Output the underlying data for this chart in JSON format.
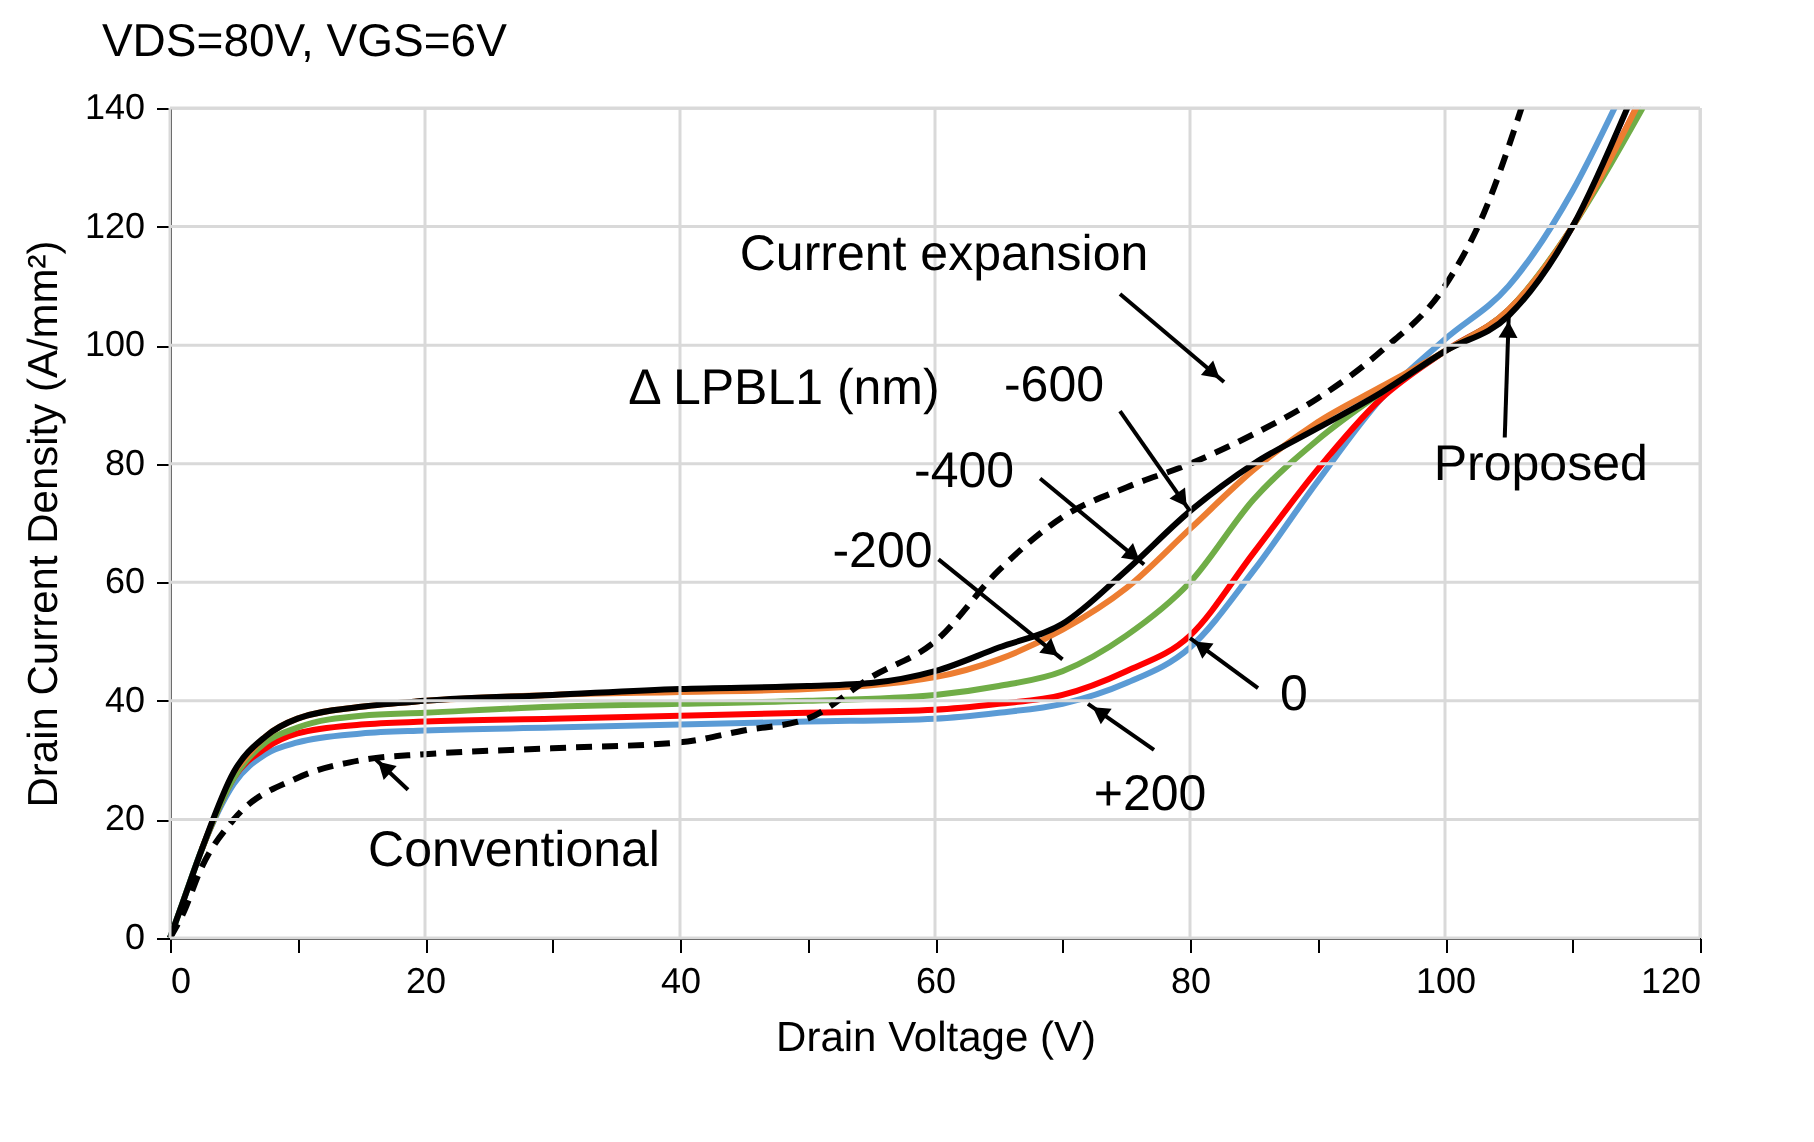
{
  "chart_data": {
    "type": "line",
    "title": "VDS=80V, VGS=6V",
    "xlabel": "Drain Voltage (V)",
    "ylabel": "Drain Current Density (A/mm²)",
    "xlim": [
      0,
      120
    ],
    "ylim": [
      0,
      140
    ],
    "xticks": [
      0,
      {
        "value": 10,
        "label": null
      },
      20,
      {
        "value": 30,
        "label": null
      },
      40,
      {
        "value": 50,
        "label": null
      },
      60,
      {
        "value": 70,
        "label": null
      },
      80,
      {
        "value": 90,
        "label": null
      },
      100,
      {
        "value": 110,
        "label": null
      },
      120
    ],
    "yticks": [
      0,
      20,
      40,
      60,
      80,
      100,
      120,
      140
    ],
    "grid": true,
    "marker": "none",
    "line_style": "solid",
    "series": [
      {
        "color": "#5b9bd5",
        "x": [
          0,
          1,
          2.5,
          5,
          7.5,
          10,
          15,
          20,
          30,
          40,
          50,
          60,
          65,
          70,
          75,
          80,
          85,
          90,
          95,
          100,
          105,
          110,
          113.3
        ],
        "values": [
          0,
          6,
          15,
          26,
          31,
          33,
          34.5,
          35,
          35.5,
          36,
          36.5,
          37,
          38,
          39.5,
          43,
          49,
          62,
          77,
          91,
          101,
          110,
          126,
          140
        ]
      },
      {
        "color": "#ff0000",
        "x": [
          2.5,
          5,
          7.5,
          10,
          15,
          20,
          30,
          40,
          50,
          60,
          65,
          70,
          75,
          80,
          85,
          90,
          95,
          100,
          105,
          110,
          115
        ],
        "values": [
          15,
          27,
          32,
          34.5,
          36,
          36.5,
          37,
          37.5,
          38,
          38.5,
          39.5,
          41,
          45,
          51,
          65,
          79,
          91,
          99,
          106,
          120,
          140
        ]
      },
      {
        "color": "#70ad47",
        "x": [
          0,
          1,
          2.5,
          5,
          7.5,
          10,
          15,
          20,
          30,
          40,
          50,
          60,
          65,
          70,
          75,
          80,
          85,
          90,
          95,
          100,
          105,
          110,
          115.5
        ],
        "values": [
          0,
          6,
          15,
          27,
          33,
          35.5,
          37.5,
          38,
          39,
          39.5,
          40,
          41,
          42.5,
          45,
          51,
          60,
          74,
          84,
          92,
          99,
          106,
          120,
          140
        ]
      },
      {
        "color": "#ed7d31",
        "x": [
          5,
          7.5,
          10,
          15,
          20,
          30,
          40,
          50,
          60,
          65,
          70,
          75,
          80,
          85,
          90,
          95,
          100,
          105,
          110,
          115
        ],
        "values": [
          28,
          34,
          37,
          39,
          40,
          41,
          41.5,
          42,
          44,
          47,
          52,
          59,
          69,
          79,
          87,
          93,
          99,
          106,
          120,
          140
        ]
      },
      {
        "color": "#000000",
        "x": [
          0,
          1,
          2.5,
          5,
          7.5,
          10,
          15,
          20,
          30,
          40,
          50,
          55,
          60,
          65,
          70,
          75,
          80,
          85,
          90,
          95,
          100,
          105,
          110,
          114.3
        ],
        "values": [
          0,
          6,
          15,
          28,
          34,
          37,
          39,
          40,
          41,
          42,
          42.5,
          43,
          45,
          49,
          53,
          62,
          72,
          80,
          86,
          92,
          99,
          105,
          120,
          140
        ]
      },
      {
        "color": "#000000",
        "line_style": "dashed",
        "x": [
          0,
          1,
          2.5,
          5,
          10,
          15,
          20,
          30,
          40,
          45,
          50,
          55,
          60,
          65,
          70,
          75,
          80,
          85,
          90,
          95,
          100,
          103,
          106
        ],
        "values": [
          0,
          4,
          12,
          20,
          27,
          30,
          31,
          32,
          33,
          35,
          37,
          44,
          50,
          62,
          71,
          76,
          80,
          85,
          91,
          99,
          110,
          122,
          140
        ]
      }
    ],
    "annotations": [
      {
        "text": "Conventional",
        "x": 16,
        "y": 30.4
      },
      {
        "text": "-600",
        "x": 80,
        "y": 72
      },
      {
        "text": "-400",
        "x": 76.4,
        "y": 63
      },
      {
        "text": "-200",
        "x": 70,
        "y": 47
      },
      {
        "text": "0",
        "x": 80,
        "y": 50.6
      },
      {
        "text": "+200",
        "x": 72,
        "y": 39.5
      },
      {
        "text": "Proposed",
        "x": 105,
        "y": 105
      },
      "Δ LPBL1 (nm)",
      "Current expansion"
    ]
  }
}
